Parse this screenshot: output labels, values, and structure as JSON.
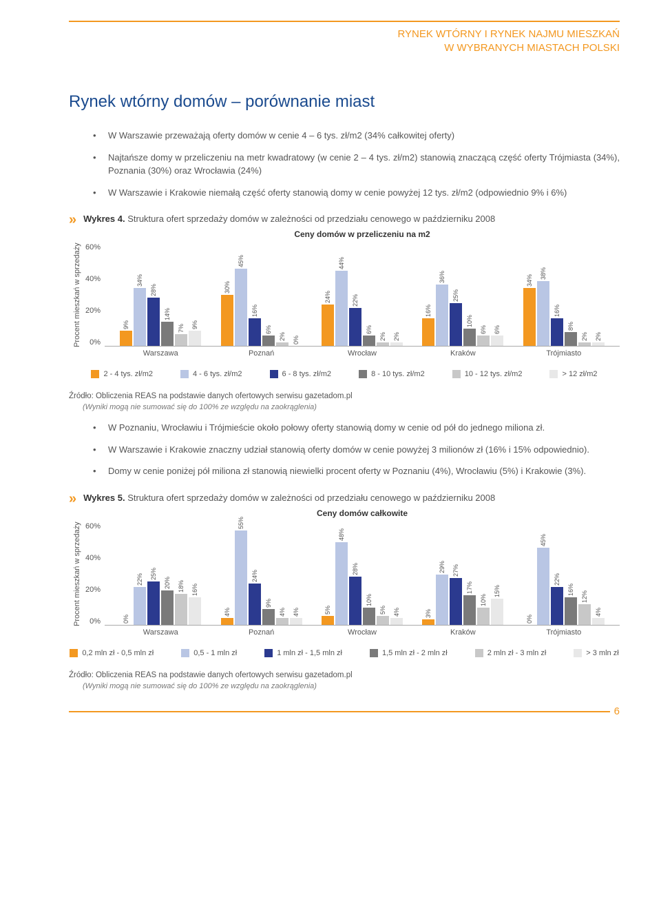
{
  "header": {
    "line1": "RYNEK WTÓRNY I RYNEK NAJMU MIESZKAŃ",
    "line2": "W WYBRANYCH MIASTACH POLSKI"
  },
  "title": "Rynek wtórny domów – porównanie miast",
  "intro_bullets": [
    "W Warszawie przeważają oferty domów w cenie 4 – 6 tys. zł/m2 (34% całkowitej oferty)",
    "Najtańsze domy w przeliczeniu na metr kwadratowy (w cenie 2 – 4 tys. zł/m2) stanowią znaczącą część oferty Trójmiasta (34%), Poznania (30%) oraz Wrocławia (24%)",
    "W Warszawie i Krakowie niemałą część oferty stanowią domy w cenie powyżej 12 tys. zł/m2 (odpowiednio 9% i 6%)"
  ],
  "chart4": {
    "heading_prefix": "Wykres 4.",
    "heading_text": "Struktura ofert sprzedaży domów w zależności od przedziału cenowego w październiku 2008",
    "title": "Ceny domów w przeliczeniu na m2",
    "y_label": "Procent mieszkań w sprzedaży",
    "y_ticks": [
      "60%",
      "40%",
      "20%",
      "0%"
    ],
    "y_max": 60,
    "cities": [
      "Warszawa",
      "Poznań",
      "Wrocław",
      "Kraków",
      "Trójmiasto"
    ],
    "series_colors": [
      "#f39820",
      "#b9c6e4",
      "#2b3a8f",
      "#7a7a7a",
      "#c8c8c8",
      "#e8e8e8"
    ],
    "series_labels": [
      "2 - 4 tys. zł/m2",
      "4 - 6 tys. zł/m2",
      "6 - 8 tys. zł/m2",
      "8 - 10 tys. zł/m2",
      "10 - 12 tys. zł/m2",
      "> 12 zł/m2"
    ],
    "data": [
      [
        9,
        34,
        28,
        14,
        7,
        9
      ],
      [
        30,
        45,
        16,
        6,
        2,
        0
      ],
      [
        24,
        44,
        22,
        6,
        2,
        2
      ],
      [
        16,
        36,
        25,
        10,
        6,
        6
      ],
      [
        34,
        38,
        16,
        8,
        2,
        2
      ]
    ]
  },
  "source": "Źródło: Obliczenia REAS na podstawie danych ofertowych serwisu gazetadom.pl",
  "rounding_note": "(Wyniki mogą nie sumować się do 100% ze względu na zaokrąglenia)",
  "mid_bullets": [
    "W Poznaniu, Wrocławiu i Trójmieście około połowy oferty stanowią domy w cenie od pół do jednego miliona zł.",
    "W Warszawie i Krakowie znaczny udział stanowią oferty domów w cenie powyżej 3 milionów zł (16% i 15% odpowiednio).",
    "Domy w cenie poniżej pół miliona zł stanowią niewielki procent oferty w Poznaniu (4%), Wrocławiu (5%) i Krakowie (3%)."
  ],
  "chart5": {
    "heading_prefix": "Wykres 5.",
    "heading_text": "Struktura ofert sprzedaży domów w zależności od przedziału cenowego w październiku 2008",
    "title": "Ceny domów całkowite",
    "y_label": "Procent mieszkań w sprzedaży",
    "y_ticks": [
      "60%",
      "40%",
      "20%",
      "0%"
    ],
    "y_max": 60,
    "cities": [
      "Warszawa",
      "Poznań",
      "Wrocław",
      "Kraków",
      "Trójmiasto"
    ],
    "series_colors": [
      "#f39820",
      "#b9c6e4",
      "#2b3a8f",
      "#7a7a7a",
      "#c8c8c8",
      "#e8e8e8"
    ],
    "series_labels": [
      "0,2 mln zł - 0,5 mln zł",
      "0,5 - 1 mln zł",
      "1 mln zł - 1,5 mln zł",
      "1,5 mln zł - 2 mln zł",
      "2 mln zł - 3 mln zł",
      "> 3 mln zł"
    ],
    "data": [
      [
        0,
        22,
        25,
        20,
        18,
        16
      ],
      [
        4,
        55,
        24,
        9,
        4,
        4
      ],
      [
        5,
        48,
        28,
        10,
        5,
        4
      ],
      [
        3,
        29,
        27,
        17,
        10,
        15
      ],
      [
        0,
        45,
        22,
        16,
        12,
        4
      ]
    ]
  },
  "page_number": "6"
}
